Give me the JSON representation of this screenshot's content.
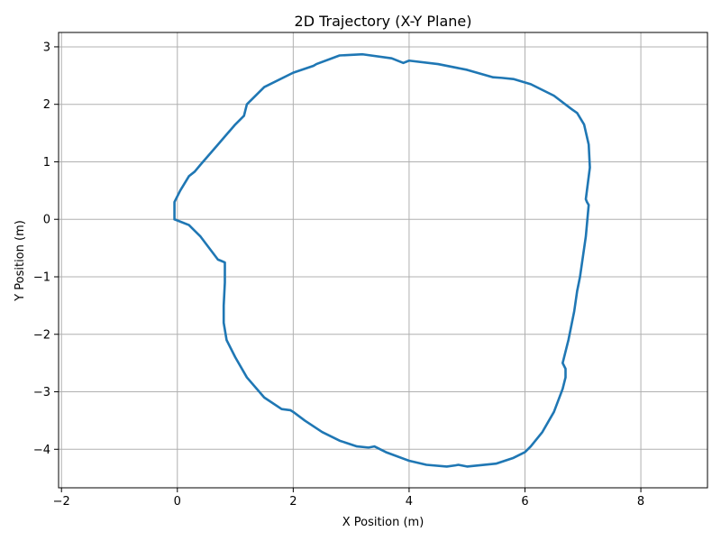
{
  "chart_data": {
    "type": "line",
    "title": "2D Trajectory (X-Y Plane)",
    "xlabel": "X Position (m)",
    "ylabel": "Y Position (m)",
    "xlim": [
      -2.05,
      9.15
    ],
    "ylim": [
      -4.67,
      3.25
    ],
    "xticks": [
      -2,
      0,
      2,
      4,
      6,
      8
    ],
    "yticks": [
      3,
      2,
      1,
      0,
      -1,
      -2,
      -3,
      -4
    ],
    "xtick_labels": [
      "−2",
      "0",
      "2",
      "4",
      "6",
      "8"
    ],
    "ytick_labels": [
      "3",
      "2",
      "1",
      "0",
      "−1",
      "−2",
      "−3",
      "−4"
    ],
    "grid": true,
    "line_color": "#1f77b4",
    "series": [
      {
        "x": [
          -0.05,
          0.2,
          0.4,
          0.55,
          0.7,
          0.75,
          0.82,
          0.82,
          0.8,
          0.8,
          0.85,
          1.0,
          1.2,
          1.5,
          1.8,
          1.95,
          2.0,
          2.2,
          2.5,
          2.8,
          3.1,
          3.3,
          3.4,
          3.6,
          4.0,
          4.3,
          4.65,
          4.8,
          4.85,
          5.0,
          5.5,
          5.8,
          6.0,
          6.1,
          6.3,
          6.5,
          6.65,
          6.7,
          6.7,
          6.65,
          6.75,
          6.85,
          6.9,
          6.92,
          6.95,
          7.05,
          7.1,
          7.07,
          7.05,
          7.12,
          7.1,
          7.02,
          6.9,
          6.8,
          6.5,
          6.1,
          5.8,
          5.6,
          5.45,
          5.0,
          4.5,
          4.0,
          3.9,
          3.7,
          3.2,
          2.8,
          2.4,
          2.35,
          2.0,
          1.5,
          1.2,
          1.15,
          1.0,
          0.7,
          0.4,
          0.3,
          0.2,
          0.05,
          -0.05,
          -0.05,
          -0.05
        ],
        "y": [
          0.0,
          -0.1,
          -0.3,
          -0.5,
          -0.7,
          -0.72,
          -0.75,
          -1.1,
          -1.5,
          -1.8,
          -2.1,
          -2.4,
          -2.75,
          -3.1,
          -3.3,
          -3.32,
          -3.35,
          -3.5,
          -3.7,
          -3.85,
          -3.95,
          -3.97,
          -3.95,
          -4.05,
          -4.2,
          -4.27,
          -4.3,
          -4.28,
          -4.27,
          -4.3,
          -4.25,
          -4.15,
          -4.05,
          -3.95,
          -3.7,
          -3.35,
          -2.95,
          -2.75,
          -2.6,
          -2.5,
          -2.1,
          -1.6,
          -1.25,
          -1.15,
          -1.0,
          -0.3,
          0.25,
          0.3,
          0.35,
          0.9,
          1.3,
          1.65,
          1.85,
          1.92,
          2.15,
          2.35,
          2.44,
          2.46,
          2.47,
          2.6,
          2.7,
          2.76,
          2.72,
          2.8,
          2.87,
          2.85,
          2.7,
          2.67,
          2.55,
          2.3,
          2.0,
          1.8,
          1.65,
          1.3,
          0.95,
          0.83,
          0.75,
          0.5,
          0.3,
          0.15,
          0.0
        ]
      }
    ]
  }
}
